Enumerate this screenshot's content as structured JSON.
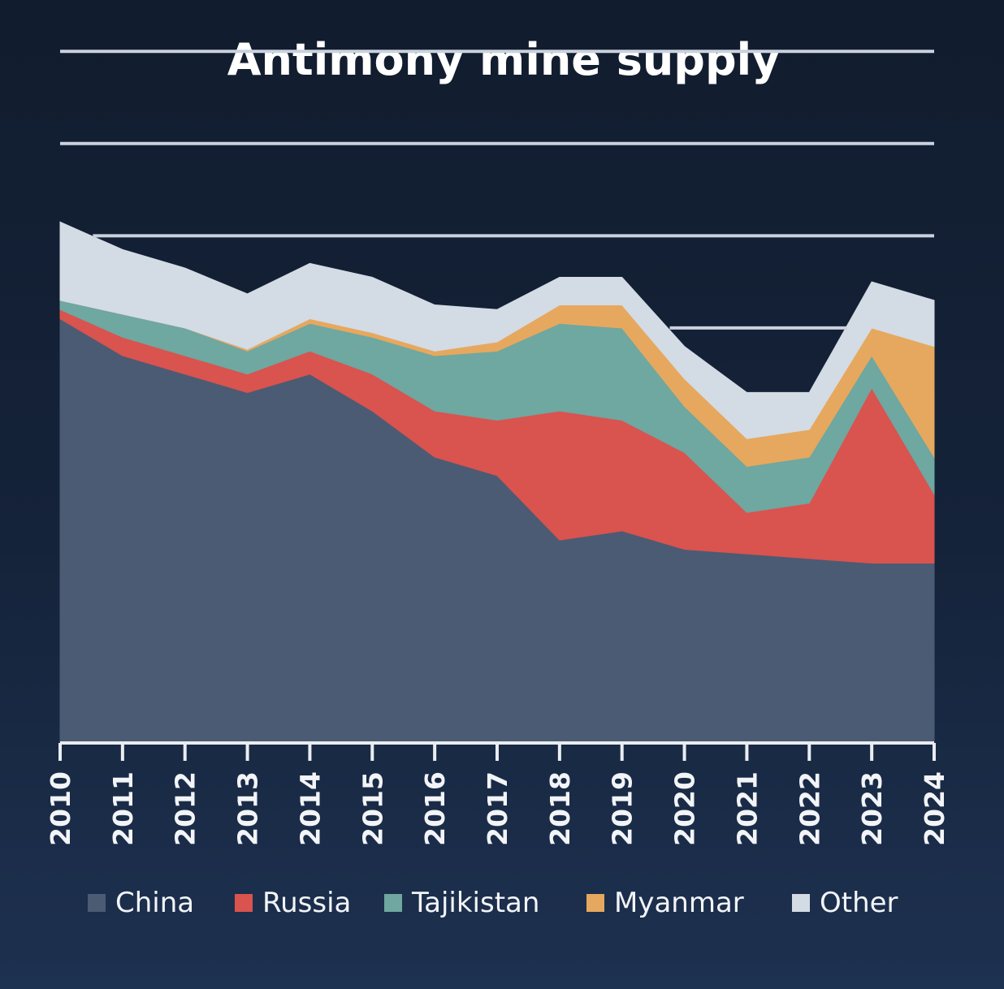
{
  "chart_data": {
    "type": "area",
    "stacked": true,
    "title": "Antimony mine supply",
    "xlabel": "",
    "ylabel": "",
    "x": [
      "2010",
      "2011",
      "2012",
      "2013",
      "2014",
      "2015",
      "2016",
      "2017",
      "2018",
      "2019",
      "2020",
      "2021",
      "2022",
      "2023",
      "2024"
    ],
    "ylim": [
      0,
      7
    ],
    "grid": true,
    "legend_position": "bottom",
    "series": [
      {
        "name": "China",
        "color": "#4b5b73",
        "values": [
          4.6,
          4.2,
          4.0,
          3.8,
          4.0,
          3.6,
          3.1,
          2.9,
          2.2,
          2.3,
          2.1,
          2.05,
          2.0,
          1.95,
          1.95
        ]
      },
      {
        "name": "Russia",
        "color": "#d9534f",
        "values": [
          0.1,
          0.2,
          0.2,
          0.2,
          0.25,
          0.4,
          0.5,
          0.6,
          1.4,
          1.2,
          1.05,
          0.45,
          0.6,
          1.9,
          0.75
        ]
      },
      {
        "name": "Tajikistan",
        "color": "#6fa7a1",
        "values": [
          0.1,
          0.25,
          0.3,
          0.25,
          0.3,
          0.4,
          0.6,
          0.75,
          0.95,
          1.0,
          0.5,
          0.5,
          0.5,
          0.35,
          0.4
        ]
      },
      {
        "name": "Myanmar",
        "color": "#e6a85e",
        "values": [
          0.0,
          0.0,
          0.0,
          0.02,
          0.05,
          0.05,
          0.05,
          0.1,
          0.2,
          0.25,
          0.3,
          0.3,
          0.3,
          0.3,
          1.2
        ]
      },
      {
        "name": "Other",
        "color": "#d3dbe5",
        "values": [
          0.85,
          0.7,
          0.65,
          0.6,
          0.6,
          0.6,
          0.5,
          0.35,
          0.3,
          0.3,
          0.35,
          0.5,
          0.4,
          0.5,
          0.5
        ]
      }
    ]
  }
}
